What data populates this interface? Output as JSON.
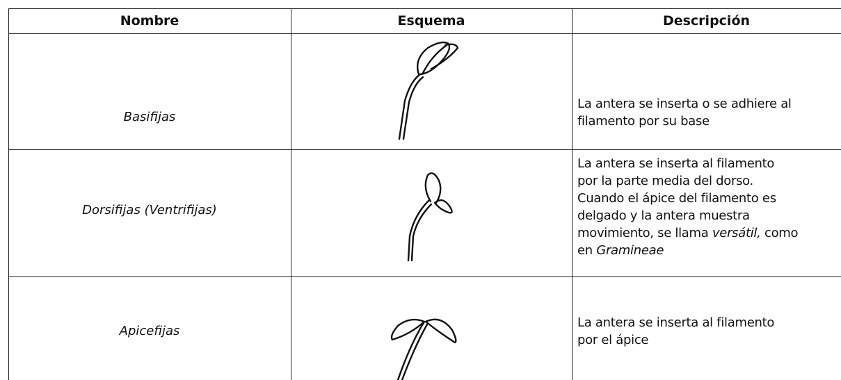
{
  "table": {
    "header": [
      "Nombre",
      "Esquema",
      "Descripción"
    ],
    "rows": [
      {
        "name": "Basifijas",
        "description": [
          [
            "La antera se inserta o se adhiere al"
          ],
          [
            "filamento por su base"
          ]
        ]
      },
      {
        "name": "Dorsifijas (Ventrifijas)",
        "description": [
          [
            "La antera se inserta al filamento"
          ],
          [
            "por la parte media  del dorso."
          ],
          [
            "Cuando el ápice del filamento es"
          ],
          [
            "delgado y la antera muestra"
          ],
          [
            "movimiento, se llama ",
            "versátil,",
            " como"
          ],
          [
            "en ",
            "Gramineae"
          ]
        ]
      },
      {
        "name": "Apicefijas",
        "description": [
          [
            "La antera se inserta al filamento"
          ],
          [
            "por el ápice"
          ]
        ]
      }
    ]
  }
}
